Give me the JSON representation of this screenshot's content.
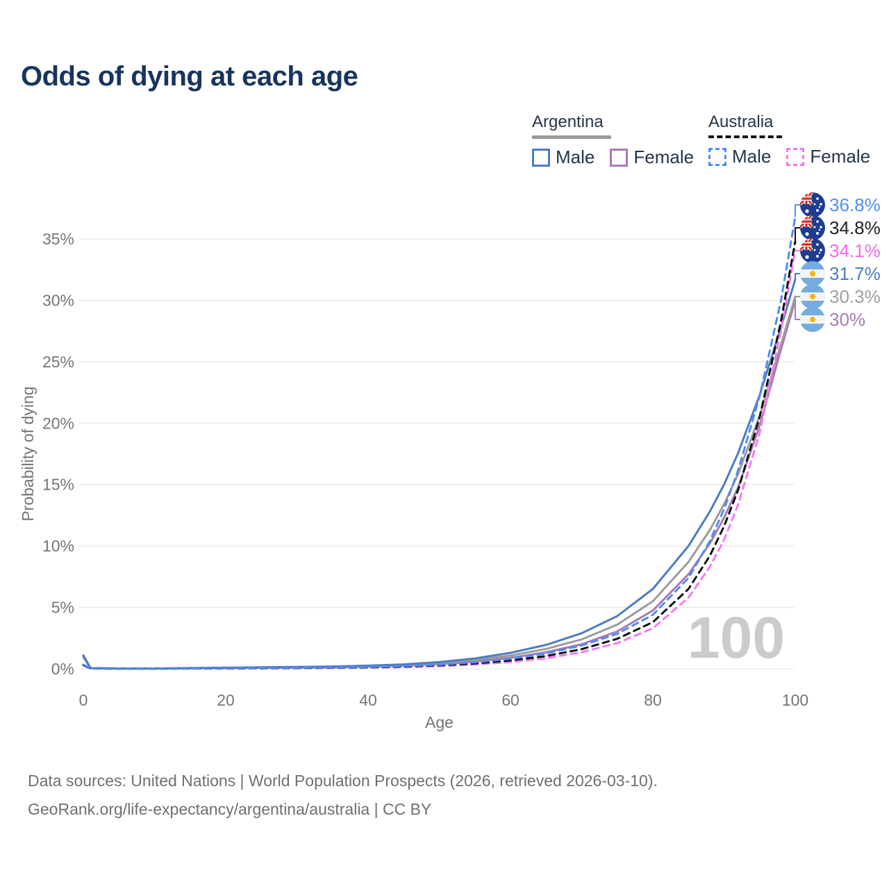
{
  "title": "Odds of dying at each age",
  "legend": {
    "groups": [
      {
        "label": "Argentina",
        "line_style": "solid",
        "underline_color": "#9a9a9a",
        "items": [
          {
            "label": "Male",
            "color": "#4d7cc1",
            "style": "solid"
          },
          {
            "label": "Female",
            "color": "#a87ab2",
            "style": "solid"
          }
        ]
      },
      {
        "label": "Australia",
        "line_style": "dashed",
        "underline_color": "#111111",
        "items": [
          {
            "label": "Male",
            "color": "#4e8cf7",
            "style": "dashed"
          },
          {
            "label": "Female",
            "color": "#f678f2",
            "style": "dashed"
          }
        ]
      }
    ]
  },
  "watermark": "100",
  "footer": {
    "line1": "Data sources: United Nations | World Population Prospects (2026, retrieved 2026-03-10).",
    "line2": "GeoRank.org/life-expectancy/argentina/australia | CC BY"
  },
  "chart_data": {
    "type": "line",
    "title": "Odds of dying at each age",
    "xlabel": "Age",
    "ylabel": "Probability of dying",
    "xlim": [
      0,
      100
    ],
    "ylim": [
      0,
      38
    ],
    "x_ticks": [
      "0",
      "20",
      "40",
      "60",
      "80",
      "100"
    ],
    "x_tick_values": [
      0,
      20,
      40,
      60,
      80,
      100
    ],
    "y_ticks": [
      "0%",
      "5%",
      "10%",
      "15%",
      "20%",
      "25%",
      "30%",
      "35%"
    ],
    "y_tick_values": [
      0,
      5,
      10,
      15,
      20,
      25,
      30,
      35
    ],
    "grid": "horizontal",
    "legend_position": "top-right",
    "x": [
      0,
      1,
      5,
      10,
      15,
      20,
      25,
      30,
      35,
      40,
      45,
      50,
      55,
      60,
      65,
      70,
      75,
      80,
      85,
      88,
      90,
      92,
      95,
      98,
      100
    ],
    "series": [
      {
        "name": "Australia Male",
        "country": "australia",
        "sex": "male",
        "dash": true,
        "color": "#4e8cf7",
        "end_label": "36.8%",
        "end_label_color": "#4e8cf7",
        "values": [
          0.35,
          0.02,
          0.01,
          0.01,
          0.03,
          0.06,
          0.07,
          0.09,
          0.11,
          0.15,
          0.22,
          0.34,
          0.53,
          0.82,
          1.25,
          1.9,
          2.85,
          4.4,
          7.4,
          10.4,
          13.0,
          16.2,
          22.2,
          30.0,
          36.8
        ]
      },
      {
        "name": "Australia",
        "country": "australia",
        "sex": "both",
        "dash": true,
        "color": "#111111",
        "end_label": "34.8%",
        "end_label_color": "#1f1f1f",
        "values": [
          0.3,
          0.02,
          0.01,
          0.01,
          0.02,
          0.04,
          0.05,
          0.07,
          0.09,
          0.12,
          0.18,
          0.28,
          0.44,
          0.68,
          1.04,
          1.6,
          2.45,
          3.8,
          6.5,
          9.2,
          11.6,
          14.6,
          20.5,
          28.3,
          34.8
        ]
      },
      {
        "name": "Australia Female",
        "country": "australia",
        "sex": "female",
        "dash": true,
        "color": "#f678f2",
        "end_label": "34.1%",
        "end_label_color": "#f466f0",
        "values": [
          0.28,
          0.02,
          0.01,
          0.01,
          0.02,
          0.03,
          0.04,
          0.05,
          0.07,
          0.1,
          0.14,
          0.22,
          0.35,
          0.55,
          0.86,
          1.35,
          2.1,
          3.3,
          5.8,
          8.3,
          10.5,
          13.4,
          19.2,
          27.5,
          34.1
        ]
      },
      {
        "name": "Argentina Male",
        "country": "argentina",
        "sex": "male",
        "dash": false,
        "color": "#4d7cc1",
        "end_label": "31.7%",
        "end_label_color": "#4d7cc1",
        "values": [
          1.1,
          0.06,
          0.03,
          0.03,
          0.06,
          0.1,
          0.13,
          0.15,
          0.19,
          0.26,
          0.36,
          0.55,
          0.85,
          1.3,
          1.95,
          2.9,
          4.3,
          6.5,
          10.0,
          12.8,
          15.0,
          17.6,
          22.3,
          27.8,
          31.7
        ]
      },
      {
        "name": "Argentina",
        "country": "argentina",
        "sex": "both",
        "dash": false,
        "color": "#9b9b9b",
        "end_label": "30.3%",
        "end_label_color": "#9e9e9e",
        "values": [
          1.0,
          0.05,
          0.02,
          0.02,
          0.05,
          0.08,
          0.1,
          0.12,
          0.15,
          0.21,
          0.3,
          0.46,
          0.71,
          1.08,
          1.62,
          2.4,
          3.6,
          5.5,
          8.7,
          11.3,
          13.4,
          15.9,
          20.6,
          26.4,
          30.3
        ]
      },
      {
        "name": "Argentina Female",
        "country": "argentina",
        "sex": "female",
        "dash": false,
        "color": "#a87ab2",
        "end_label": "30%",
        "end_label_color": "#a87ab2",
        "values": [
          0.95,
          0.05,
          0.02,
          0.02,
          0.04,
          0.06,
          0.08,
          0.1,
          0.12,
          0.17,
          0.25,
          0.38,
          0.59,
          0.9,
          1.35,
          2.0,
          3.05,
          4.75,
          7.7,
          10.2,
          12.3,
          14.8,
          19.8,
          26.0,
          30.0
        ]
      }
    ]
  }
}
